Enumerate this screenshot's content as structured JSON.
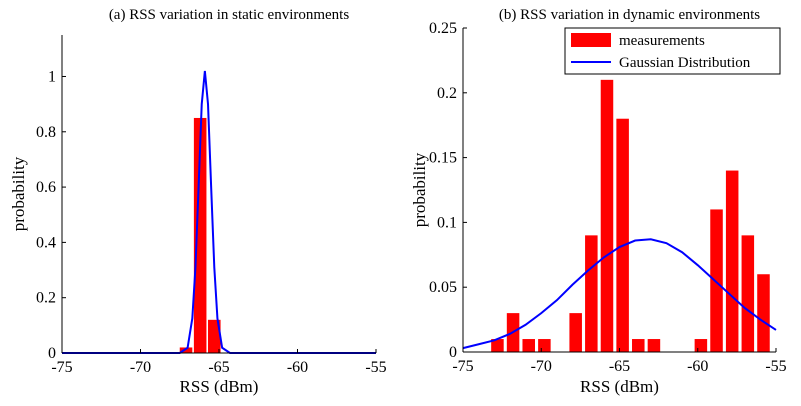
{
  "chart_data": [
    {
      "type": "bar",
      "title": "(a) RSS variation in static environments",
      "xlabel": "RSS (dBm)",
      "ylabel": "probability",
      "xlim": [
        -75,
        -55
      ],
      "ylim": [
        0,
        1.15
      ],
      "xticks": [
        -75,
        -70,
        -65,
        -60,
        -55
      ],
      "yticks": [
        0,
        0.2,
        0.4,
        0.6,
        0.8,
        1
      ],
      "series": [
        {
          "type": "bar",
          "color": "#ff0000",
          "x": [
            -67.1,
            -66.2,
            -65.3
          ],
          "values": [
            0.02,
            0.85,
            0.12
          ]
        },
        {
          "type": "line",
          "color": "#0000ff",
          "x": [
            -75,
            -68,
            -67.5,
            -67,
            -66.7,
            -66.5,
            -66.3,
            -66.1,
            -65.9,
            -65.7,
            -65.5,
            -65.3,
            -65.1,
            -64.8,
            -64.3,
            -55
          ],
          "values": [
            0,
            0,
            0,
            0.019,
            0.125,
            0.31,
            0.6,
            0.9,
            1.02,
            0.9,
            0.6,
            0.31,
            0.125,
            0.019,
            0,
            0
          ]
        }
      ]
    },
    {
      "type": "bar",
      "title": "(b) RSS variation in dynamic environments",
      "xlabel": "RSS (dBm)",
      "ylabel": "probability",
      "xlim": [
        -75,
        -55
      ],
      "ylim": [
        0,
        0.25
      ],
      "xticks": [
        -75,
        -70,
        -65,
        -60,
        -55
      ],
      "yticks": [
        0,
        0.05,
        0.1,
        0.15,
        0.2,
        0.25
      ],
      "legend": "upper right",
      "series": [
        {
          "name": "measurements",
          "type": "bar",
          "color": "#ff0000",
          "x": [
            -72.8,
            -71.8,
            -70.8,
            -69.8,
            -67.8,
            -66.8,
            -65.8,
            -64.8,
            -63.8,
            -62.8,
            -59.8,
            -58.8,
            -57.8,
            -56.8,
            -55.8
          ],
          "values": [
            0.01,
            0.03,
            0.01,
            0.01,
            0.03,
            0.09,
            0.21,
            0.18,
            0.01,
            0.01,
            0.01,
            0.11,
            0.14,
            0.09,
            0.06
          ]
        },
        {
          "name": "Gaussian Distribution",
          "type": "line",
          "color": "#0000ff",
          "x": [
            -75,
            -74,
            -73,
            -72,
            -71,
            -70,
            -69,
            -68,
            -67,
            -66,
            -65,
            -64,
            -63,
            -62,
            -61,
            -60,
            -59,
            -58,
            -57,
            -56,
            -55
          ],
          "values": [
            0.003,
            0.006,
            0.009,
            0.014,
            0.021,
            0.03,
            0.04,
            0.052,
            0.063,
            0.073,
            0.081,
            0.086,
            0.087,
            0.084,
            0.077,
            0.067,
            0.056,
            0.045,
            0.034,
            0.025,
            0.017
          ]
        }
      ]
    }
  ]
}
